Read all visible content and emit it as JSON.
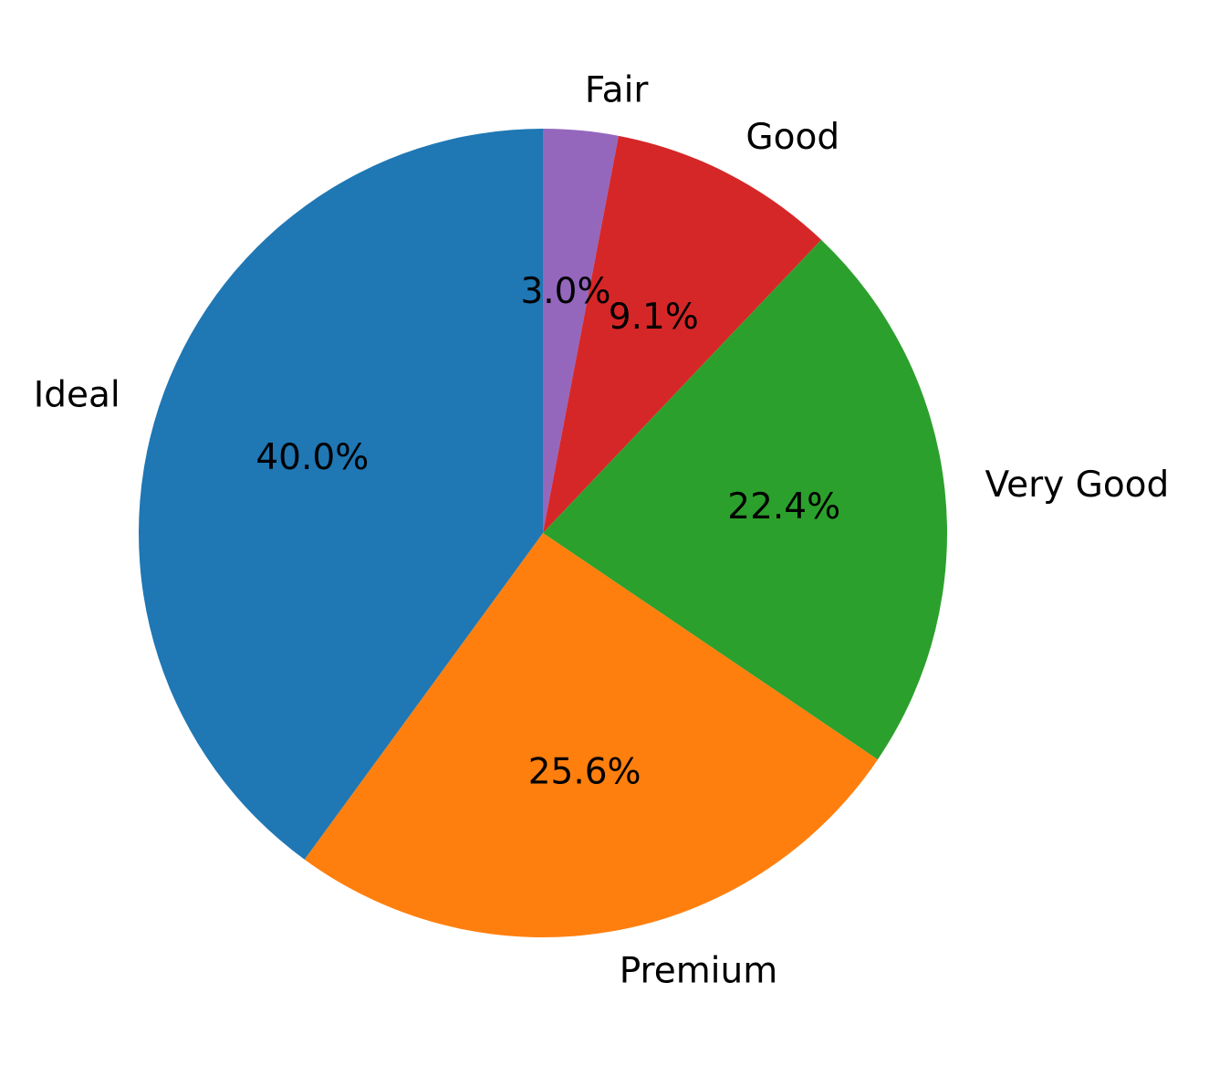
{
  "chart_data": {
    "type": "pie",
    "start_angle_deg": 90,
    "direction": "clockwise",
    "slices": [
      {
        "label": "Fair",
        "value": 3.0,
        "pct_text": "3.0%",
        "color": "#9467bd"
      },
      {
        "label": "Good",
        "value": 9.1,
        "pct_text": "9.1%",
        "color": "#d62728"
      },
      {
        "label": "Very Good",
        "value": 22.4,
        "pct_text": "22.4%",
        "color": "#2ca02c"
      },
      {
        "label": "Premium",
        "value": 25.6,
        "pct_text": "25.6%",
        "color": "#ff7f0e"
      },
      {
        "label": "Ideal",
        "value": 40.0,
        "pct_text": "40.0%",
        "color": "#1f77b4"
      }
    ]
  }
}
